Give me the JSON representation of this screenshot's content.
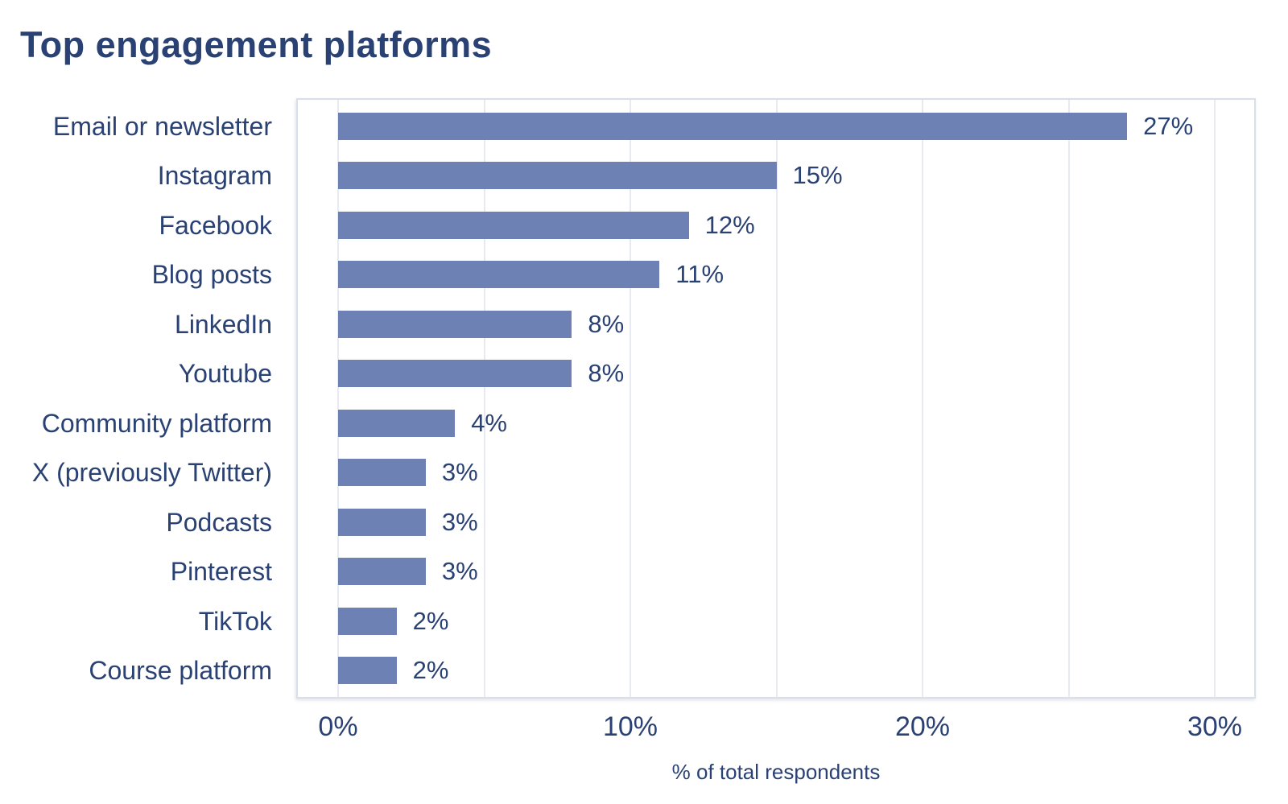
{
  "chart_data": {
    "type": "bar",
    "orientation": "horizontal",
    "title": "Top engagement platforms",
    "xlabel": "% of total respondents",
    "categories": [
      "Email or newsletter",
      "Instagram",
      "Facebook",
      "Blog posts",
      "LinkedIn",
      "Youtube",
      "Community platform",
      "X (previously Twitter)",
      "Podcasts",
      "Pinterest",
      "TikTok",
      "Course platform"
    ],
    "values": [
      27,
      15,
      12,
      11,
      8,
      8,
      4,
      3,
      3,
      3,
      2,
      2
    ],
    "value_labels": [
      "27%",
      "15%",
      "12%",
      "11%",
      "8%",
      "8%",
      "4%",
      "3%",
      "3%",
      "3%",
      "2%",
      "2%"
    ],
    "x_ticks": [
      "0%",
      "10%",
      "20%",
      "30%"
    ],
    "x_tick_values": [
      0,
      10,
      20,
      30
    ],
    "xlim": [
      0,
      30
    ],
    "gridline_step": 5,
    "grid": "vertical",
    "legend": "none",
    "colors": {
      "bar": "#6e81b4",
      "text": "#2a4173",
      "grid": "#e7eaf1",
      "border": "#d9dfe9",
      "background": "#ffffff"
    }
  }
}
